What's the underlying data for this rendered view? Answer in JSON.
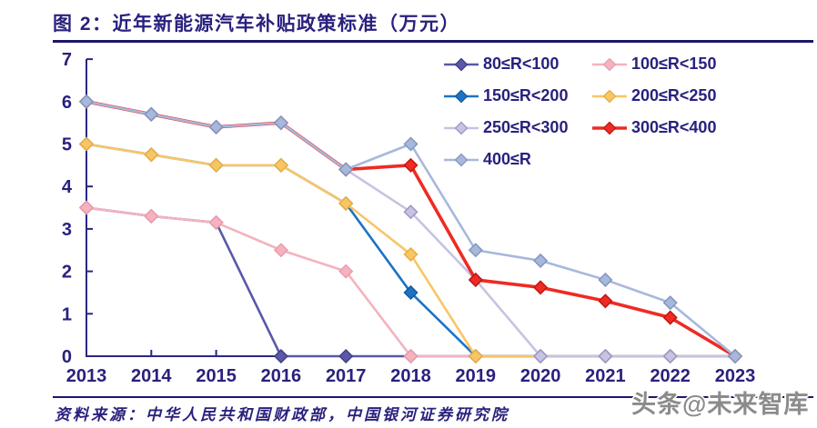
{
  "figure": {
    "title": "图 2：近年新能源汽车补贴政策标准（万元）",
    "source": "资料来源：中华人民共和国财政部，中国银河证券研究院",
    "watermark": "头条@未来智库"
  },
  "colors": {
    "text_navy": "#29217e",
    "rule_navy": "#1c166b",
    "axis_navy": "#2b2681",
    "watermark_gray": "#8b8b8b",
    "background": "#ffffff"
  },
  "chart_data": {
    "type": "line",
    "title": "近年新能源汽车补贴政策标准（万元）",
    "x": [
      2013,
      2014,
      2015,
      2016,
      2017,
      2018,
      2019,
      2020,
      2021,
      2022,
      2023
    ],
    "xlabel": "",
    "ylabel": "",
    "ylim": [
      0,
      7
    ],
    "yticks": [
      0,
      1,
      2,
      3,
      4,
      5,
      6,
      7
    ],
    "grid": false,
    "legend_position": "top-right",
    "marker": "diamond",
    "series": [
      {
        "name": "80≤R<100",
        "color": "#5b58a8",
        "marker_edge": "#413e86",
        "thick": false,
        "values": [
          3.5,
          3.3,
          3.15,
          0,
          0,
          0,
          0,
          0,
          0,
          0,
          0
        ]
      },
      {
        "name": "100≤R<150",
        "color": "#f4b3be",
        "marker_edge": "#ec9cab",
        "thick": false,
        "values": [
          3.5,
          3.3,
          3.15,
          2.5,
          2.0,
          0,
          0,
          0,
          0,
          0,
          0
        ]
      },
      {
        "name": "150≤R<200",
        "color": "#1c73c5",
        "marker_edge": "#135a9e",
        "thick": false,
        "values": [
          5.0,
          4.75,
          4.5,
          4.5,
          3.6,
          1.5,
          0,
          0,
          0,
          0,
          0
        ]
      },
      {
        "name": "200≤R<250",
        "color": "#f8c666",
        "marker_edge": "#eaad41",
        "thick": false,
        "values": [
          5.0,
          4.75,
          4.5,
          4.5,
          3.6,
          2.4,
          0,
          0,
          0,
          0,
          0
        ]
      },
      {
        "name": "250≤R<300",
        "color": "#c7c3e1",
        "marker_edge": "#9c95c8",
        "thick": false,
        "values": [
          6.0,
          5.7,
          5.4,
          5.5,
          4.4,
          3.4,
          1.8,
          0,
          0,
          0,
          0
        ]
      },
      {
        "name": "300≤R<400",
        "color": "#ee2b24",
        "marker_edge": "#c2160f",
        "thick": true,
        "values": [
          6.0,
          5.7,
          5.4,
          5.5,
          4.4,
          4.5,
          1.8,
          1.62,
          1.3,
          0.91,
          0
        ]
      },
      {
        "name": "400≤R",
        "color": "#a7b8db",
        "marker_edge": "#8296c2",
        "thick": false,
        "values": [
          6.0,
          5.7,
          5.4,
          5.5,
          4.4,
          5.0,
          2.5,
          2.25,
          1.8,
          1.26,
          0
        ]
      }
    ]
  }
}
